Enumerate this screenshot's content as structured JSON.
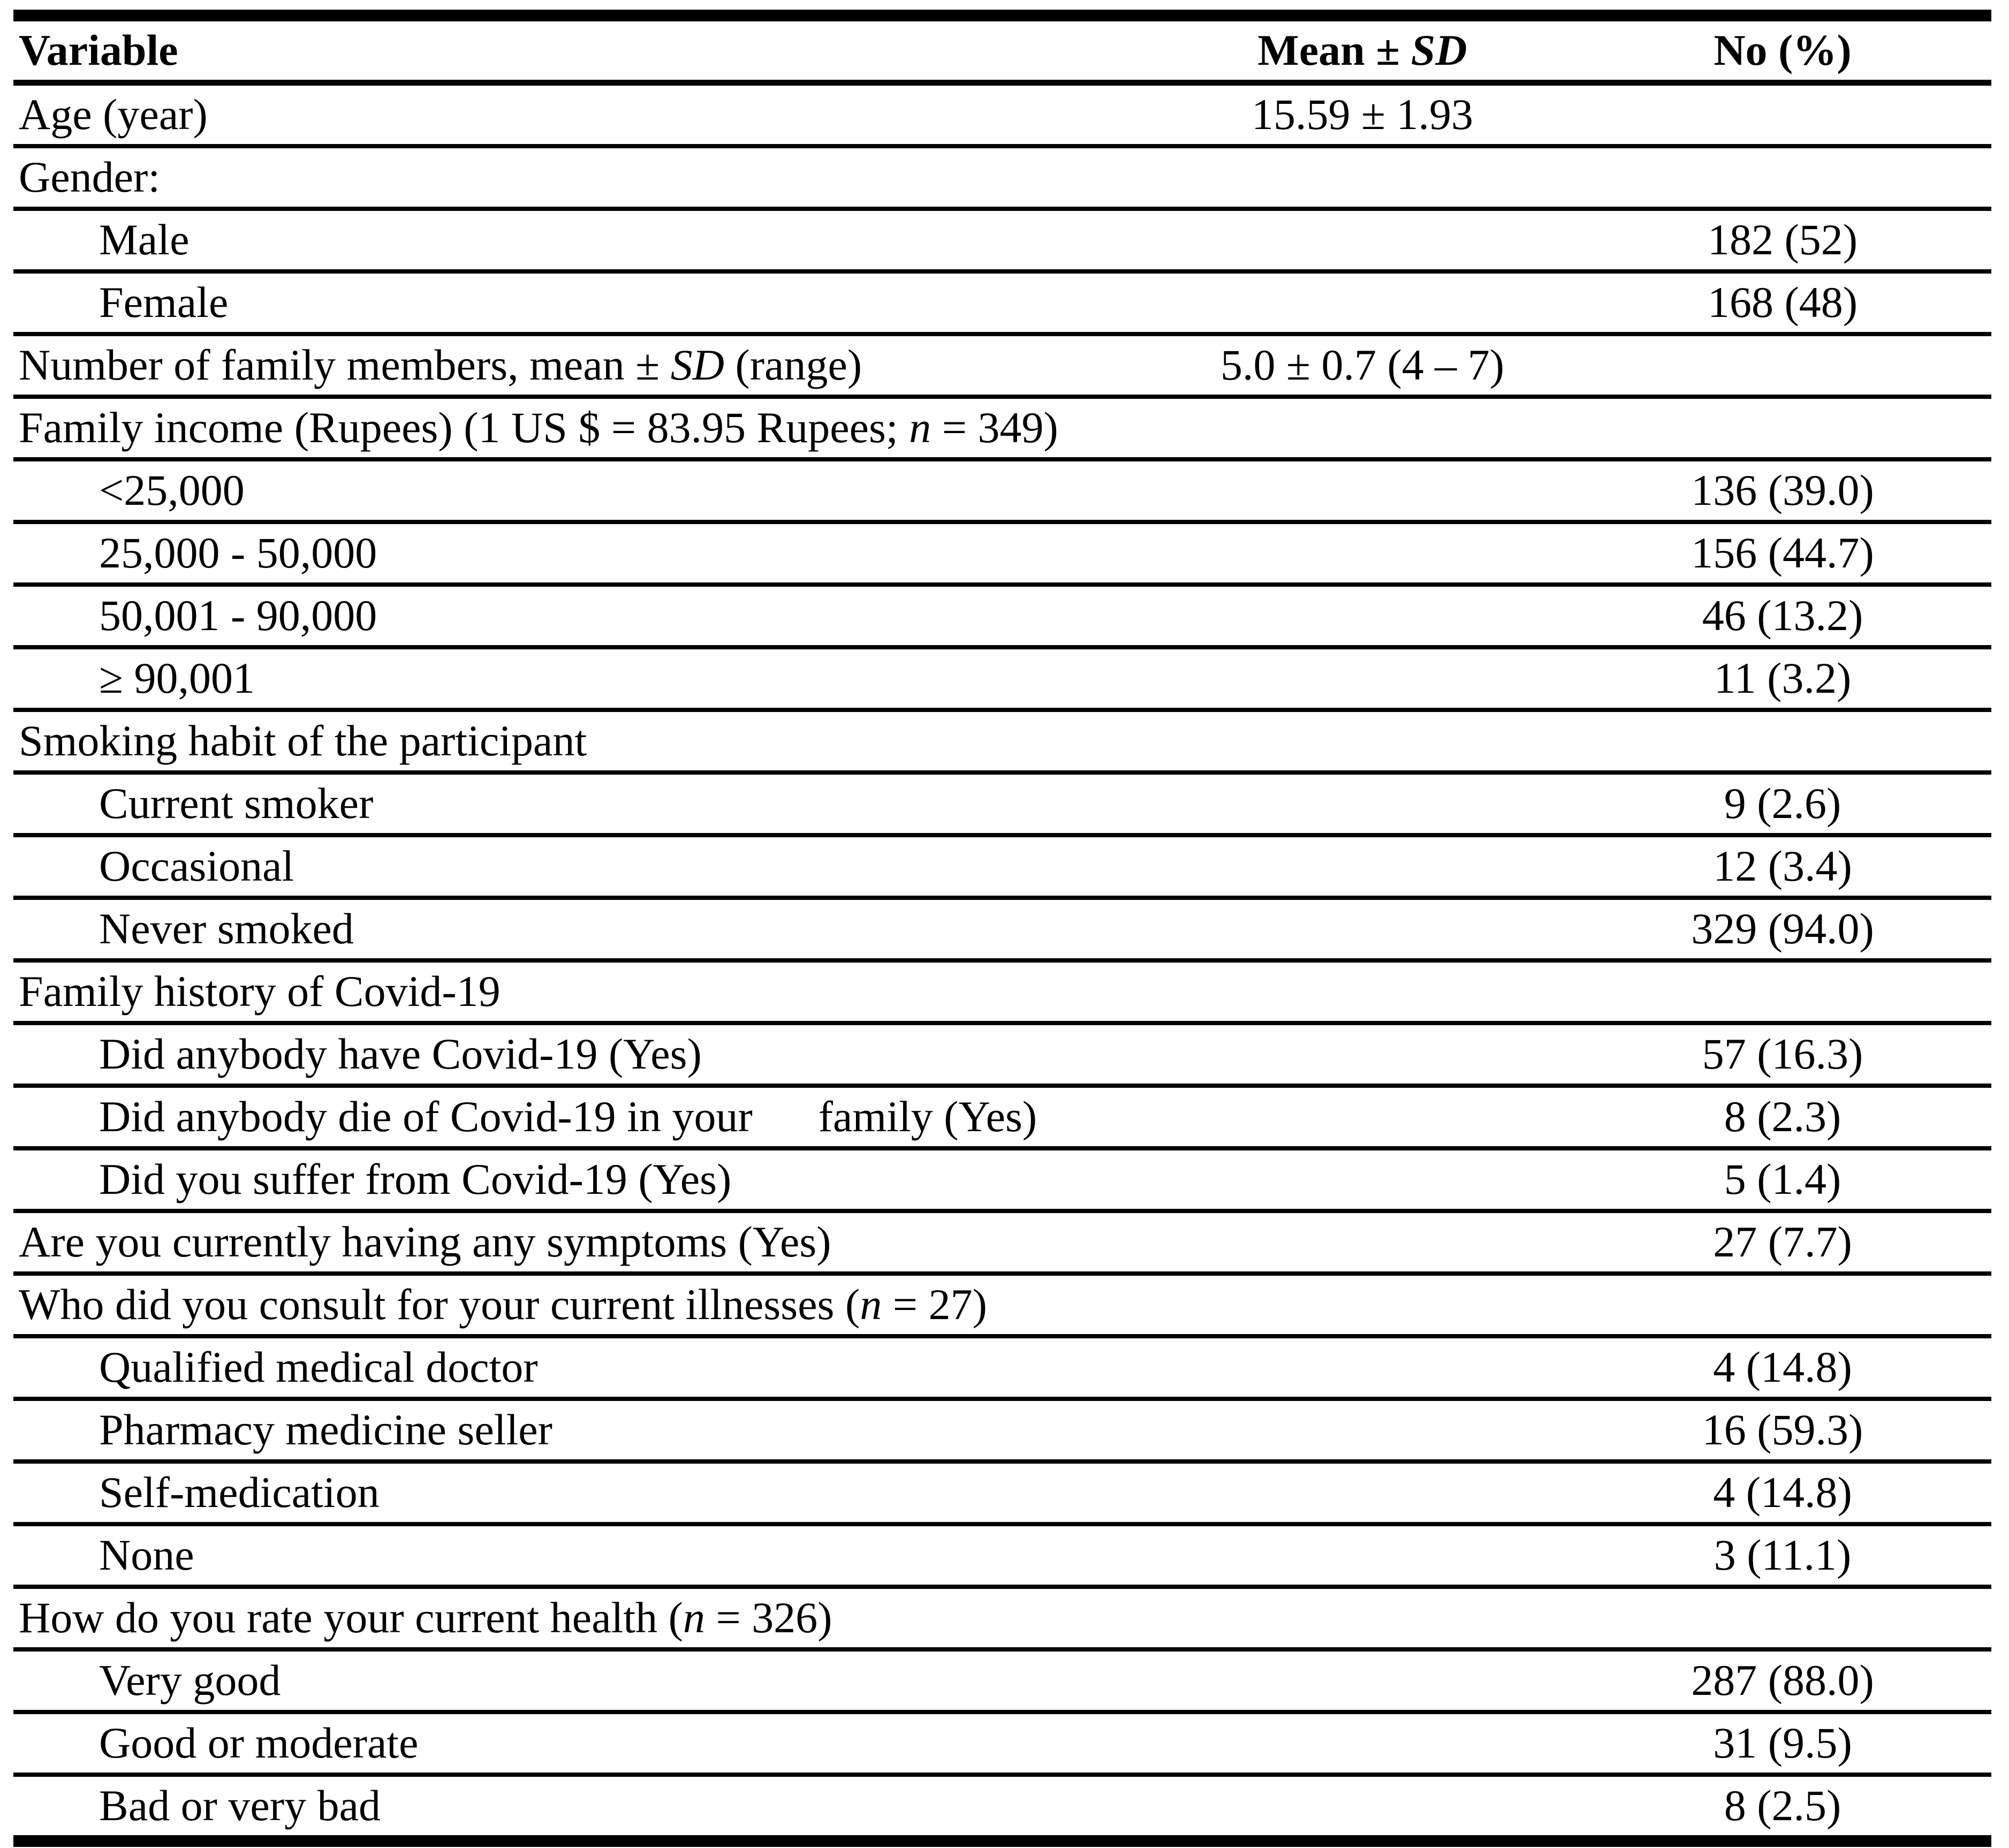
{
  "colors": {
    "text": "#000000",
    "background": "#ffffff",
    "rule": "#000000"
  },
  "table": {
    "columns": [
      {
        "key": "label",
        "align": "left",
        "label_parts": [
          {
            "t": "Variable",
            "i": false
          }
        ]
      },
      {
        "key": "mean",
        "align": "center",
        "label_parts": [
          {
            "t": "Mean ± ",
            "i": false
          },
          {
            "t": "SD",
            "i": true
          }
        ]
      },
      {
        "key": "no",
        "align": "center",
        "label_parts": [
          {
            "t": "No (%)",
            "i": false
          }
        ]
      }
    ],
    "rows": [
      {
        "indent": 0,
        "label_parts": [
          {
            "t": "Age (year)"
          }
        ],
        "mean": "15.59 ± 1.93",
        "no": ""
      },
      {
        "indent": 0,
        "label_parts": [
          {
            "t": "Gender:"
          }
        ],
        "mean": "",
        "no": ""
      },
      {
        "indent": 1,
        "label_parts": [
          {
            "t": "Male"
          }
        ],
        "mean": "",
        "no": "182 (52)"
      },
      {
        "indent": 1,
        "label_parts": [
          {
            "t": "Female"
          }
        ],
        "mean": "",
        "no": "168 (48)"
      },
      {
        "indent": 0,
        "label_parts": [
          {
            "t": "Number of family members, mean ± "
          },
          {
            "t": "SD",
            "i": true
          },
          {
            "t": " (range)"
          }
        ],
        "mean": "5.0 ± 0.7 (4 – 7)",
        "no": ""
      },
      {
        "indent": 0,
        "label_parts": [
          {
            "t": "Family income (Rupees) (1 US $ = 83.95 Rupees; "
          },
          {
            "t": "n",
            "i": true
          },
          {
            "t": " = 349)"
          }
        ],
        "mean": "",
        "no": ""
      },
      {
        "indent": 1,
        "label_parts": [
          {
            "t": "<25,000"
          }
        ],
        "mean": "",
        "no": "136 (39.0)"
      },
      {
        "indent": 1,
        "label_parts": [
          {
            "t": "25,000 - 50,000"
          }
        ],
        "mean": "",
        "no": "156 (44.7)"
      },
      {
        "indent": 1,
        "label_parts": [
          {
            "t": "50,001 - 90,000"
          }
        ],
        "mean": "",
        "no": "46 (13.2)"
      },
      {
        "indent": 1,
        "label_parts": [
          {
            "t": "≥ 90,001"
          }
        ],
        "mean": "",
        "no": "11 (3.2)"
      },
      {
        "indent": 0,
        "label_parts": [
          {
            "t": "Smoking habit of the participant"
          }
        ],
        "mean": "",
        "no": ""
      },
      {
        "indent": 1,
        "label_parts": [
          {
            "t": "Current smoker"
          }
        ],
        "mean": "",
        "no": "9 (2.6)"
      },
      {
        "indent": 1,
        "label_parts": [
          {
            "t": "Occasional"
          }
        ],
        "mean": "",
        "no": "12 (3.4)"
      },
      {
        "indent": 1,
        "label_parts": [
          {
            "t": "Never smoked"
          }
        ],
        "mean": "",
        "no": "329 (94.0)"
      },
      {
        "indent": 0,
        "label_parts": [
          {
            "t": "Family history of Covid-19"
          }
        ],
        "mean": "",
        "no": ""
      },
      {
        "indent": 1,
        "label_parts": [
          {
            "t": "Did anybody have Covid-19 (Yes)"
          }
        ],
        "mean": "",
        "no": "57 (16.3)"
      },
      {
        "indent": 1,
        "label_parts": [
          {
            "t": "Did anybody die of Covid-19 in your      family (Yes)"
          }
        ],
        "mean": "",
        "no": "8 (2.3)"
      },
      {
        "indent": 1,
        "label_parts": [
          {
            "t": "Did you suffer from Covid-19 (Yes)"
          }
        ],
        "mean": "",
        "no": "5 (1.4)"
      },
      {
        "indent": 0,
        "label_parts": [
          {
            "t": "Are you currently having any symptoms (Yes)"
          }
        ],
        "mean": "",
        "no": "27 (7.7)"
      },
      {
        "indent": 0,
        "label_parts": [
          {
            "t": "Who did you consult for your current illnesses ("
          },
          {
            "t": "n",
            "i": true
          },
          {
            "t": " = 27)"
          }
        ],
        "mean": "",
        "no": ""
      },
      {
        "indent": 1,
        "label_parts": [
          {
            "t": "Qualified medical doctor"
          }
        ],
        "mean": "",
        "no": "4 (14.8)"
      },
      {
        "indent": 1,
        "label_parts": [
          {
            "t": "Pharmacy medicine seller"
          }
        ],
        "mean": "",
        "no": "16 (59.3)"
      },
      {
        "indent": 1,
        "label_parts": [
          {
            "t": "Self-medication"
          }
        ],
        "mean": "",
        "no": "4 (14.8)"
      },
      {
        "indent": 1,
        "label_parts": [
          {
            "t": "None"
          }
        ],
        "mean": "",
        "no": "3 (11.1)"
      },
      {
        "indent": 0,
        "label_parts": [
          {
            "t": "How do you rate your current health ("
          },
          {
            "t": "n",
            "i": true
          },
          {
            "t": " = 326)"
          }
        ],
        "mean": "",
        "no": ""
      },
      {
        "indent": 1,
        "label_parts": [
          {
            "t": "Very good"
          }
        ],
        "mean": "",
        "no": "287 (88.0)"
      },
      {
        "indent": 1,
        "label_parts": [
          {
            "t": "Good or moderate"
          }
        ],
        "mean": "",
        "no": "31 (9.5)"
      },
      {
        "indent": 1,
        "label_parts": [
          {
            "t": "Bad or very bad"
          }
        ],
        "mean": "",
        "no": "8 (2.5)"
      }
    ]
  }
}
